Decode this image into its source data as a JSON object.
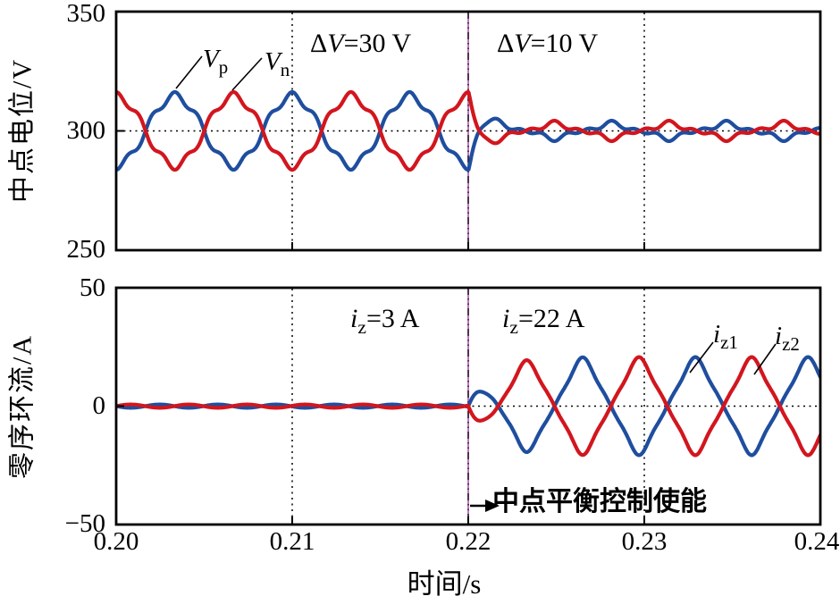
{
  "chart_data": {
    "type": "line",
    "xlabel": "时间/s",
    "x_range": [
      0.2,
      0.24
    ],
    "x_ticks": [
      "0.20",
      "0.21",
      "0.22",
      "0.23",
      "0.24"
    ],
    "x_gridlines": [
      0.21,
      0.23
    ],
    "event_time": 0.22,
    "grid_style": "dotted",
    "event_line_color": "#b565b5",
    "subplots": [
      {
        "ylabel": "中点电位/V",
        "ylim": [
          250,
          350
        ],
        "yticks": [
          "350",
          "300",
          "250"
        ],
        "gridline_y": 300,
        "annotations": [
          {
            "prefix": "Δ",
            "var": "V",
            "rest": "=30 V"
          },
          {
            "prefix": "Δ",
            "var": "V",
            "rest": "=10 V"
          }
        ],
        "series": [
          {
            "name": "Vp",
            "label_main": "V",
            "label_sub": "p",
            "color": "#1f4e9f",
            "description": "upper capacitor neutral-point potential: 300 V mean, ±16 V 150 Hz ripple before 0.22 s, ±4 V ripple after"
          },
          {
            "name": "Vn",
            "label_main": "V",
            "label_sub": "n",
            "color": "#d2161e",
            "description": "lower capacitor neutral-point potential: antiphase mirror of Vp about 300 V"
          }
        ]
      },
      {
        "ylabel": "零序环流/A",
        "ylim": [
          -50,
          50
        ],
        "yticks": [
          "50",
          "0",
          "−50"
        ],
        "gridline_y": 0,
        "annotations": [
          {
            "var": "i",
            "sub": "z",
            "rest": "=3 A"
          },
          {
            "var": "i",
            "sub": "z",
            "rest": "=22 A"
          }
        ],
        "event_label": "中点平衡控制使能",
        "series": [
          {
            "name": "iz1",
            "label_main": "i",
            "label_sub": "z1",
            "color": "#1f4e9f",
            "description": "zero-sequence circulating current 1: ≈0 A before 0.22 s, ±20 A 150 Hz triangular wave after"
          },
          {
            "name": "iz2",
            "label_main": "i",
            "label_sub": "z2",
            "color": "#d2161e",
            "description": "zero-sequence circulating current 2: mirror of iz1"
          }
        ]
      }
    ],
    "waveforms": {
      "event_ms": 20,
      "voltage": {
        "mean": 300,
        "pre": {
          "amp": 16.3,
          "period_ms": 6.6667,
          "h5": 0.12
        },
        "post": {
          "lens_amp": 4.3,
          "lens_period_ms": 6.5,
          "bump_period_ms": 1.63,
          "bump_depth": 0.38,
          "decay_amp": 17,
          "decay_tau_ms": 0.55,
          "decay_cos_period_ms": 2.8
        }
      },
      "current": {
        "pre": {
          "amp": 0.7,
          "period_ms": 3.3
        },
        "post": {
          "amp": 20,
          "period_ms": 6.4,
          "peak_delay_ms": 3.3,
          "rise_tau_ms": 1.2,
          "shape": 0.9
        }
      }
    }
  }
}
